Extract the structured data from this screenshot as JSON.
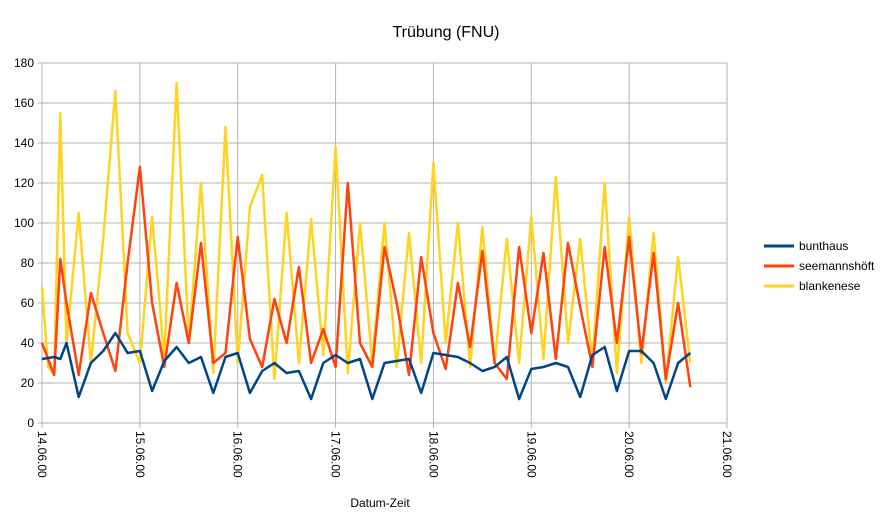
{
  "chart_data": {
    "type": "line",
    "title": "Trübung (FNU)",
    "xlabel": "Datum-Zeit",
    "ylabel": "",
    "ylim": [
      0,
      180
    ],
    "y_ticks": [
      0,
      20,
      40,
      60,
      80,
      100,
      120,
      140,
      160,
      180
    ],
    "x_tick_labels": [
      "14.06.00",
      "15.06.00",
      "16.06.00",
      "17.06.00",
      "18.06.00",
      "19.06.00",
      "20.06.00",
      "21.06.00"
    ],
    "xlim": [
      "14.06.00",
      "21.06.00"
    ],
    "grid": true,
    "legend_position": "right",
    "series": [
      {
        "name": "bunthaus",
        "color": "#004586",
        "x": [
          "14.06. 00:00",
          "14.06. 03:00",
          "14.06. 04:30",
          "14.06. 06:00",
          "14.06. 09:00",
          "14.06. 12:00",
          "14.06. 15:00",
          "14.06. 18:00",
          "14.06. 21:00",
          "15.06. 00:00",
          "15.06. 03:00",
          "15.06. 06:00",
          "15.06. 09:00",
          "15.06. 12:00",
          "15.06. 15:00",
          "15.06. 18:00",
          "15.06. 21:00",
          "16.06. 00:00",
          "16.06. 03:00",
          "16.06. 06:00",
          "16.06. 09:00",
          "16.06. 12:00",
          "16.06. 15:00",
          "16.06. 18:00",
          "16.06. 21:00",
          "17.06. 00:00",
          "17.06. 03:00",
          "17.06. 06:00",
          "17.06. 09:00",
          "17.06. 12:00",
          "17.06. 15:00",
          "17.06. 18:00",
          "17.06. 21:00",
          "18.06. 00:00",
          "18.06. 03:00",
          "18.06. 06:00",
          "18.06. 09:00",
          "18.06. 12:00",
          "18.06. 15:00",
          "18.06. 18:00",
          "18.06. 21:00",
          "19.06. 00:00",
          "19.06. 03:00",
          "19.06. 06:00",
          "19.06. 09:00",
          "19.06. 12:00",
          "19.06. 15:00",
          "19.06. 18:00",
          "19.06. 21:00",
          "20.06. 00:00",
          "20.06. 03:00",
          "20.06. 06:00",
          "20.06. 09:00",
          "20.06. 12:00",
          "20.06. 15:00"
        ],
        "values": [
          32,
          33,
          32,
          40,
          13,
          30,
          36,
          45,
          35,
          36,
          16,
          31,
          38,
          30,
          33,
          15,
          33,
          35,
          15,
          26,
          30,
          25,
          26,
          12,
          30,
          34,
          30,
          32,
          12,
          30,
          31,
          32,
          15,
          35,
          34,
          33,
          30,
          26,
          28,
          33,
          12,
          27,
          28,
          30,
          28,
          13,
          34,
          38,
          16,
          36,
          36,
          30,
          12,
          30,
          35
        ]
      },
      {
        "name": "seemannshöft",
        "color": "#ff420e",
        "x": [
          "14.06. 00:00",
          "14.06. 03:00",
          "14.06. 04:30",
          "14.06. 06:00",
          "14.06. 09:00",
          "14.06. 12:00",
          "14.06. 15:00",
          "14.06. 18:00",
          "14.06. 21:00",
          "15.06. 00:00",
          "15.06. 03:00",
          "15.06. 06:00",
          "15.06. 09:00",
          "15.06. 12:00",
          "15.06. 15:00",
          "15.06. 18:00",
          "15.06. 21:00",
          "16.06. 00:00",
          "16.06. 03:00",
          "16.06. 06:00",
          "16.06. 09:00",
          "16.06. 12:00",
          "16.06. 15:00",
          "16.06. 18:00",
          "16.06. 21:00",
          "17.06. 00:00",
          "17.06. 03:00",
          "17.06. 06:00",
          "17.06. 09:00",
          "17.06. 12:00",
          "17.06. 15:00",
          "17.06. 18:00",
          "17.06. 21:00",
          "18.06. 00:00",
          "18.06. 03:00",
          "18.06. 06:00",
          "18.06. 09:00",
          "18.06. 12:00",
          "18.06. 15:00",
          "18.06. 18:00",
          "18.06. 21:00",
          "19.06. 00:00",
          "19.06. 03:00",
          "19.06. 06:00",
          "19.06. 09:00",
          "19.06. 12:00",
          "19.06. 15:00",
          "19.06. 18:00",
          "19.06. 21:00",
          "20.06. 00:00",
          "20.06. 03:00",
          "20.06. 06:00",
          "20.06. 09:00",
          "20.06. 12:00",
          "20.06. 15:00"
        ],
        "values": [
          40,
          24,
          82,
          60,
          24,
          65,
          45,
          26,
          80,
          128,
          60,
          28,
          70,
          40,
          90,
          30,
          35,
          93,
          42,
          28,
          62,
          40,
          78,
          30,
          47,
          28,
          120,
          40,
          28,
          88,
          60,
          24,
          83,
          45,
          27,
          70,
          38,
          86,
          30,
          22,
          88,
          45,
          85,
          32,
          90,
          58,
          28,
          88,
          40,
          93,
          35,
          85,
          22,
          60,
          18
        ]
      },
      {
        "name": "blankenese",
        "color": "#ffd320",
        "x": [
          "14.06. 00:00",
          "14.06. 01:30",
          "14.06. 03:00",
          "14.06. 04:30",
          "14.06. 06:00",
          "14.06. 09:00",
          "14.06. 12:00",
          "14.06. 15:00",
          "14.06. 18:00",
          "14.06. 21:00",
          "15.06. 00:00",
          "15.06. 03:00",
          "15.06. 06:00",
          "15.06. 09:00",
          "15.06. 12:00",
          "15.06. 15:00",
          "15.06. 18:00",
          "15.06. 21:00",
          "16.06. 00:00",
          "16.06. 03:00",
          "16.06. 06:00",
          "16.06. 09:00",
          "16.06. 12:00",
          "16.06. 15:00",
          "16.06. 18:00",
          "16.06. 21:00",
          "17.06. 00:00",
          "17.06. 03:00",
          "17.06. 06:00",
          "17.06. 09:00",
          "17.06. 12:00",
          "17.06. 15:00",
          "17.06. 18:00",
          "17.06. 21:00",
          "18.06. 00:00",
          "18.06. 03:00",
          "18.06. 06:00",
          "18.06. 09:00",
          "18.06. 12:00",
          "18.06. 15:00",
          "18.06. 18:00",
          "18.06. 21:00",
          "19.06. 00:00",
          "19.06. 03:00",
          "19.06. 06:00",
          "19.06. 09:00",
          "19.06. 12:00",
          "19.06. 15:00",
          "19.06. 18:00",
          "19.06. 21:00",
          "20.06. 00:00",
          "20.06. 03:00",
          "20.06. 06:00",
          "20.06. 09:00",
          "20.06. 12:00",
          "20.06. 15:00"
        ],
        "values": [
          68,
          28,
          24,
          155,
          40,
          105,
          30,
          92,
          166,
          45,
          30,
          103,
          33,
          170,
          40,
          120,
          25,
          148,
          30,
          108,
          124,
          22,
          105,
          30,
          102,
          34,
          138,
          25,
          100,
          30,
          100,
          28,
          95,
          30,
          130,
          40,
          100,
          28,
          98,
          30,
          92,
          30,
          103,
          32,
          123,
          40,
          92,
          30,
          120,
          25,
          103,
          30,
          95,
          20,
          83,
          30
        ]
      }
    ]
  }
}
